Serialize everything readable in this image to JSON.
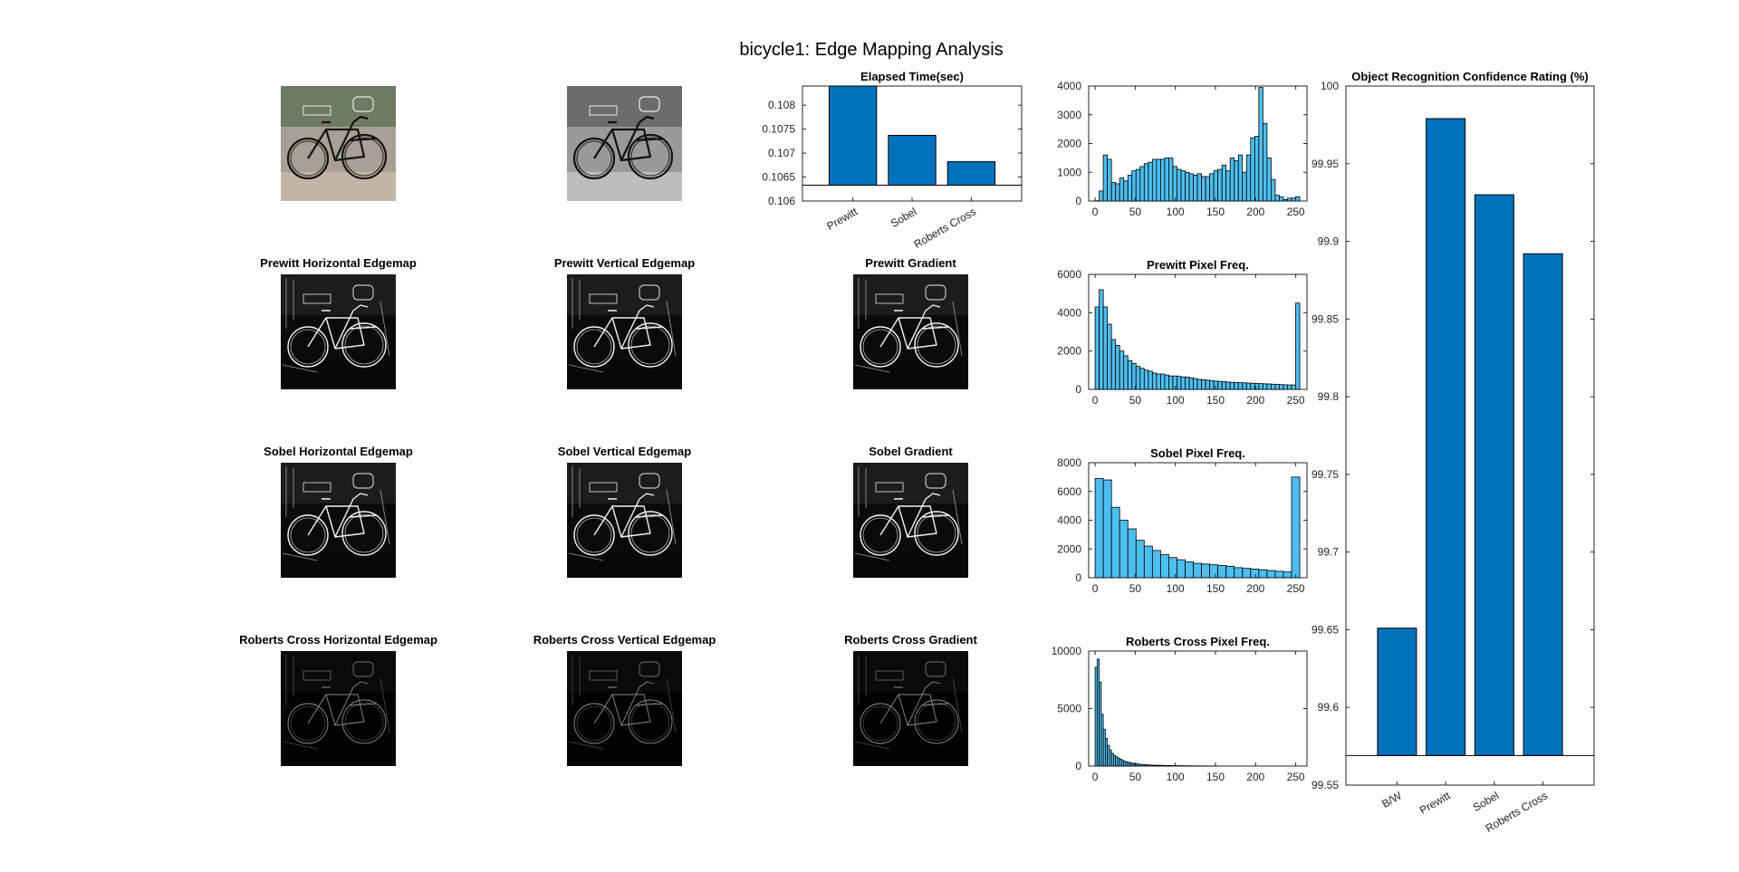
{
  "figure": {
    "title": "bicycle1: Edge Mapping Analysis"
  },
  "image_panels": [
    {
      "row": 0,
      "col": 0,
      "title": "",
      "style": "color"
    },
    {
      "row": 0,
      "col": 1,
      "title": "",
      "style": "gray"
    },
    {
      "row": 1,
      "col": 0,
      "title": "Prewitt Horizontal Edgemap",
      "style": "edge"
    },
    {
      "row": 1,
      "col": 1,
      "title": "Prewitt Vertical Edgemap",
      "style": "edge"
    },
    {
      "row": 1,
      "col": 2,
      "title": "Prewitt Gradient",
      "style": "edge"
    },
    {
      "row": 2,
      "col": 0,
      "title": "Sobel Horizontal Edgemap",
      "style": "edge"
    },
    {
      "row": 2,
      "col": 1,
      "title": "Sobel Vertical Edgemap",
      "style": "edge"
    },
    {
      "row": 2,
      "col": 2,
      "title": "Sobel Gradient",
      "style": "edge"
    },
    {
      "row": 3,
      "col": 0,
      "title": "Roberts Cross Horizontal Edgemap",
      "style": "dark"
    },
    {
      "row": 3,
      "col": 1,
      "title": "Roberts Cross Vertical Edgemap",
      "style": "dark"
    },
    {
      "row": 3,
      "col": 2,
      "title": "Roberts Cross Gradient",
      "style": "dark"
    }
  ],
  "chart_data": [
    {
      "id": "elapsed",
      "type": "bar",
      "title": "Elapsed Time(sec)",
      "categories": [
        "Prewitt",
        "Sobel",
        "Roberts Cross"
      ],
      "values": [
        0.1084,
        0.10737,
        0.10682
      ],
      "baseline": 0.10633,
      "ylim": [
        0.106,
        0.1084
      ],
      "yticks": [
        0.106,
        0.1065,
        0.107,
        0.1075,
        0.108
      ],
      "ytick_labels": [
        "0.106",
        "0.1065",
        "0.107",
        "0.1075",
        "0.108"
      ],
      "color": "#0072BD"
    },
    {
      "id": "hist-gray",
      "type": "bar",
      "title": "",
      "xlim": [
        -8,
        264
      ],
      "ylim": [
        0,
        4000
      ],
      "xticks": [
        0,
        50,
        100,
        150,
        200,
        250
      ],
      "yticks": [
        0,
        1000,
        2000,
        3000,
        4000
      ],
      "bin_width": 5.1,
      "bin_start": 0,
      "values": [
        10,
        350,
        1600,
        1450,
        650,
        600,
        800,
        700,
        900,
        1050,
        1100,
        1200,
        1300,
        1350,
        1450,
        1450,
        1450,
        1500,
        1500,
        1200,
        1100,
        1050,
        1000,
        950,
        900,
        950,
        850,
        850,
        950,
        1050,
        1100,
        1250,
        1050,
        1500,
        1400,
        1600,
        1000,
        1600,
        2200,
        2250,
        3950,
        2700,
        1500,
        750,
        200,
        150,
        50,
        100,
        100,
        150
      ],
      "color": "#4DBEEE"
    },
    {
      "id": "hist-prewitt",
      "type": "bar",
      "title": "Prewitt Pixel Freq.",
      "xlim": [
        -8,
        264
      ],
      "ylim": [
        0,
        6000
      ],
      "xticks": [
        0,
        50,
        100,
        150,
        200,
        250
      ],
      "yticks": [
        0,
        2000,
        4000,
        6000
      ],
      "bin_width": 5.1,
      "bin_start": 0,
      "values": [
        4300,
        5200,
        4300,
        3400,
        2600,
        2300,
        2000,
        1750,
        1500,
        1350,
        1200,
        1100,
        1000,
        950,
        850,
        800,
        800,
        750,
        700,
        700,
        680,
        650,
        640,
        600,
        560,
        520,
        500,
        480,
        450,
        430,
        420,
        400,
        380,
        370,
        360,
        350,
        340,
        330,
        320,
        310,
        300,
        290,
        280,
        270,
        260,
        250,
        240,
        230,
        230,
        4500
      ],
      "color": "#4DBEEE"
    },
    {
      "id": "hist-sobel",
      "type": "bar",
      "title": "Sobel Pixel Freq.",
      "xlim": [
        -8,
        264
      ],
      "ylim": [
        0,
        8000
      ],
      "xticks": [
        0,
        50,
        100,
        150,
        200,
        250
      ],
      "yticks": [
        0,
        2000,
        4000,
        6000,
        8000
      ],
      "bin_width": 10.2,
      "bin_start": 0,
      "values": [
        6900,
        6800,
        4900,
        4000,
        3400,
        2600,
        2200,
        1900,
        1600,
        1400,
        1250,
        1100,
        1000,
        950,
        900,
        850,
        800,
        700,
        650,
        600,
        550,
        500,
        450,
        400,
        7000
      ],
      "color": "#4DBEEE"
    },
    {
      "id": "hist-roberts",
      "type": "bar",
      "title": "Roberts Cross Pixel Freq.",
      "xlim": [
        -8,
        264
      ],
      "ylim": [
        0,
        10000
      ],
      "xticks": [
        0,
        50,
        100,
        150,
        200,
        250
      ],
      "yticks": [
        0,
        5000,
        10000
      ],
      "bin_width": 2.55,
      "bin_start": 0,
      "values": [
        8600,
        9300,
        7300,
        4500,
        3200,
        2400,
        1800,
        1400,
        1100,
        900,
        800,
        700,
        600,
        500,
        420,
        360,
        320,
        280,
        240,
        210,
        190,
        170,
        150,
        130,
        120,
        110,
        100,
        90,
        80,
        75,
        70,
        65,
        60,
        55,
        50,
        45,
        40,
        38,
        35,
        32,
        30,
        28,
        26,
        24,
        22,
        20,
        18,
        16,
        15,
        14,
        13,
        12,
        11,
        10,
        9,
        8,
        7,
        6,
        5,
        4
      ],
      "color": "#4DBEEE"
    },
    {
      "id": "confidence",
      "type": "bar",
      "title": "Object Recognition Confidence Rating (%)",
      "categories": [
        "B/W",
        "Prewitt",
        "Sobel",
        "Roberts Cross"
      ],
      "values": [
        99.651,
        99.979,
        99.93,
        99.892
      ],
      "baseline": 99.569,
      "ylim": [
        99.55,
        100
      ],
      "yticks": [
        99.55,
        99.6,
        99.65,
        99.7,
        99.75,
        99.8,
        99.85,
        99.9,
        99.95,
        100
      ],
      "ytick_labels": [
        "99.55",
        "99.6",
        "99.65",
        "99.7",
        "99.75",
        "99.8",
        "99.85",
        "99.9",
        "99.95",
        "100"
      ],
      "color": "#0072BD"
    }
  ]
}
